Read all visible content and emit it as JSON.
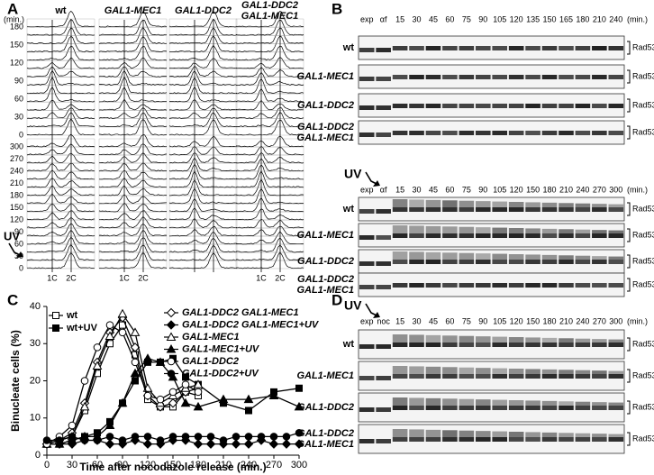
{
  "panel_a": {
    "label": "A",
    "unit": "(min.)",
    "treatment": "UV",
    "strains": [
      [
        "wt"
      ],
      [
        "GAL1-MEC1"
      ],
      [
        "GAL1-DDC2"
      ],
      [
        "GAL1-DDC2",
        "GAL1-MEC1"
      ]
    ],
    "top_ticks": [
      0,
      30,
      60,
      90,
      120,
      150,
      180
    ],
    "bottom_ticks": [
      0,
      30,
      60,
      90,
      120,
      150,
      180,
      210,
      240,
      270,
      300
    ],
    "dna_labels": [
      "1C",
      "2C"
    ]
  },
  "panel_b": {
    "label": "B",
    "blocks": [
      {
        "lanes": [
          "exp",
          "αf",
          "15",
          "30",
          "45",
          "60",
          "75",
          "90",
          "105",
          "120",
          "135",
          "150",
          "165",
          "180",
          "210",
          "240"
        ],
        "unit": "(min.)",
        "band_label": "Rad53",
        "rows": [
          [
            "wt"
          ],
          [
            "GAL1-MEC1"
          ],
          [
            "GAL1-DDC2"
          ],
          [
            "GAL1-DDC2",
            "GAL1-MEC1"
          ]
        ]
      },
      {
        "treatment": "UV",
        "lanes": [
          "exp",
          "αf",
          "15",
          "30",
          "45",
          "60",
          "75",
          "90",
          "105",
          "120",
          "150",
          "180",
          "210",
          "240",
          "270",
          "300"
        ],
        "unit": "(min.)",
        "band_label": "Rad53",
        "rows": [
          [
            "wt"
          ],
          [
            "GAL1-MEC1"
          ],
          [
            "GAL1-DDC2"
          ],
          [
            "GAL1-DDC2",
            "GAL1-MEC1"
          ]
        ]
      }
    ]
  },
  "panel_d": {
    "label": "D",
    "blocks": [
      {
        "treatment": "UV",
        "lanes": [
          "exp",
          "noc",
          "15",
          "30",
          "45",
          "60",
          "75",
          "90",
          "105",
          "120",
          "150",
          "180",
          "210",
          "240",
          "270",
          "300"
        ],
        "unit": "(min.)",
        "band_label": "Rad53",
        "rows": [
          [
            "wt"
          ],
          [
            "GAL1-MEC1"
          ],
          [
            "GAL1-DDC2"
          ],
          [
            "GAL1-DDC2",
            "GAL1-MEC1"
          ]
        ]
      }
    ]
  },
  "chart_data": {
    "type": "line",
    "panel_label": "C",
    "x_label": "Time after nocodazole release (min.)",
    "y_label": "Binucleate cells (%)",
    "xlim": [
      0,
      300
    ],
    "xticks": [
      0,
      30,
      60,
      90,
      120,
      150,
      180,
      210,
      240,
      270,
      300
    ],
    "ylim": [
      0,
      40
    ],
    "yticks": [
      0,
      10,
      20,
      30,
      40
    ],
    "series": [
      {
        "name": "wt",
        "color": "#000000",
        "marker": "square",
        "filled": false,
        "x": [
          0,
          15,
          30,
          45,
          60,
          75,
          90,
          105,
          120,
          135,
          150,
          165,
          180
        ],
        "values": [
          3,
          4,
          5,
          12,
          22,
          30,
          35,
          27,
          15,
          13,
          13,
          17,
          16
        ]
      },
      {
        "name": "wt+UV",
        "color": "#000000",
        "marker": "square",
        "filled": true,
        "x": [
          0,
          15,
          30,
          45,
          60,
          75,
          90,
          105,
          120,
          135,
          150,
          165,
          180,
          210,
          240,
          270,
          300
        ],
        "values": [
          3,
          3,
          4,
          5,
          6,
          9,
          14,
          20,
          25,
          25,
          26,
          21,
          19,
          14,
          12,
          17,
          18
        ]
      },
      {
        "name": "GAL1-DDC2 GAL1-MEC1",
        "color": "#000000",
        "marker": "diamond",
        "filled": false,
        "x": [
          0,
          15,
          30,
          45,
          60,
          75,
          90,
          105,
          120,
          135,
          150,
          165,
          180
        ],
        "values": [
          3,
          4,
          6,
          14,
          25,
          33,
          37,
          29,
          16,
          13,
          14,
          17,
          18
        ]
      },
      {
        "name": "GAL1-DDC2 GAL1-MEC1+UV",
        "color": "#000000",
        "marker": "diamond",
        "filled": true,
        "x": [
          0,
          15,
          30,
          45,
          60,
          75,
          90,
          105,
          120,
          135,
          150,
          165,
          180,
          195,
          210,
          225,
          240,
          255,
          270,
          285,
          300
        ],
        "values": [
          3,
          3,
          3,
          4,
          4,
          3,
          3,
          4,
          3,
          3,
          4,
          4,
          3,
          3,
          3,
          3,
          3,
          4,
          3,
          3,
          3
        ]
      },
      {
        "name": "GAL1-MEC1",
        "color": "#000000",
        "marker": "triangle",
        "filled": false,
        "x": [
          0,
          15,
          30,
          45,
          60,
          75,
          90,
          105,
          120,
          135,
          150,
          165,
          180
        ],
        "values": [
          3,
          4,
          5,
          13,
          24,
          32,
          38,
          33,
          18,
          14,
          16,
          18,
          19
        ]
      },
      {
        "name": "GAL1-MEC1+UV",
        "color": "#000000",
        "marker": "triangle",
        "filled": true,
        "x": [
          0,
          15,
          30,
          45,
          60,
          75,
          90,
          105,
          120,
          135,
          150,
          165,
          180,
          210,
          240,
          270,
          300
        ],
        "values": [
          3,
          3,
          4,
          5,
          5,
          8,
          14,
          22,
          26,
          25,
          21,
          14,
          13,
          15,
          15,
          16,
          13
        ]
      },
      {
        "name": "GAL1-DDC2",
        "color": "#000000",
        "marker": "circle",
        "filled": false,
        "x": [
          0,
          15,
          30,
          45,
          60,
          75,
          90,
          105,
          120,
          135,
          150,
          165,
          180
        ],
        "values": [
          3,
          5,
          8,
          20,
          29,
          35,
          33,
          25,
          16,
          15,
          17,
          19,
          17
        ]
      },
      {
        "name": "GAL1-DDC2+UV",
        "color": "#000000",
        "marker": "circle",
        "filled": true,
        "x": [
          0,
          15,
          30,
          45,
          60,
          75,
          90,
          105,
          120,
          135,
          150,
          165,
          180,
          195,
          210,
          225,
          240,
          255,
          270,
          285,
          300
        ],
        "values": [
          4,
          4,
          5,
          4,
          4,
          5,
          4,
          5,
          5,
          4,
          5,
          5,
          5,
          5,
          4,
          5,
          5,
          5,
          5,
          5,
          6
        ]
      }
    ]
  }
}
